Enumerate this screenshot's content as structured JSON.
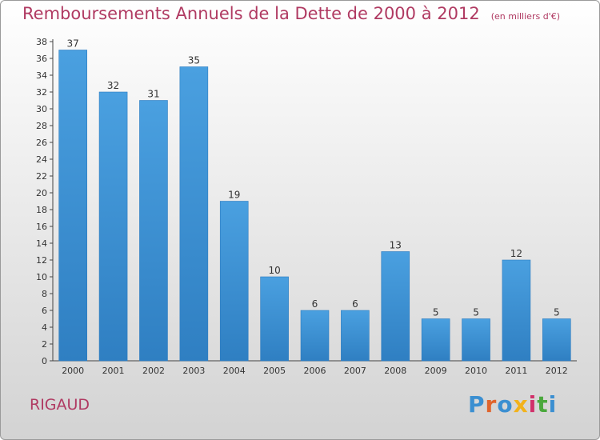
{
  "title": "Remboursements Annuels de la Dette de 2000 à 2012",
  "unit": "(en milliers d'€)",
  "place": "RIGAUD",
  "logo": {
    "text": "Proxiti",
    "colors": [
      "#3b8fd1",
      "#e0642c",
      "#3b8fd1",
      "#f2b21b",
      "#d1306a",
      "#4aa83c",
      "#3b8fd1"
    ]
  },
  "colors": {
    "bar": "#4aa0e0",
    "bar_dark": "#2f7fc2",
    "title": "#b03a62"
  },
  "chart_data": {
    "type": "bar",
    "categories": [
      "2000",
      "2001",
      "2002",
      "2003",
      "2004",
      "2005",
      "2006",
      "2007",
      "2008",
      "2009",
      "2010",
      "2011",
      "2012"
    ],
    "values": [
      37,
      32,
      31,
      35,
      19,
      10,
      6,
      6,
      13,
      5,
      5,
      12,
      5
    ],
    "ylim": [
      0,
      38
    ],
    "yticks": [
      0,
      2,
      4,
      6,
      8,
      10,
      12,
      14,
      16,
      18,
      20,
      22,
      24,
      26,
      28,
      30,
      32,
      34,
      36,
      38
    ],
    "grid": false
  }
}
